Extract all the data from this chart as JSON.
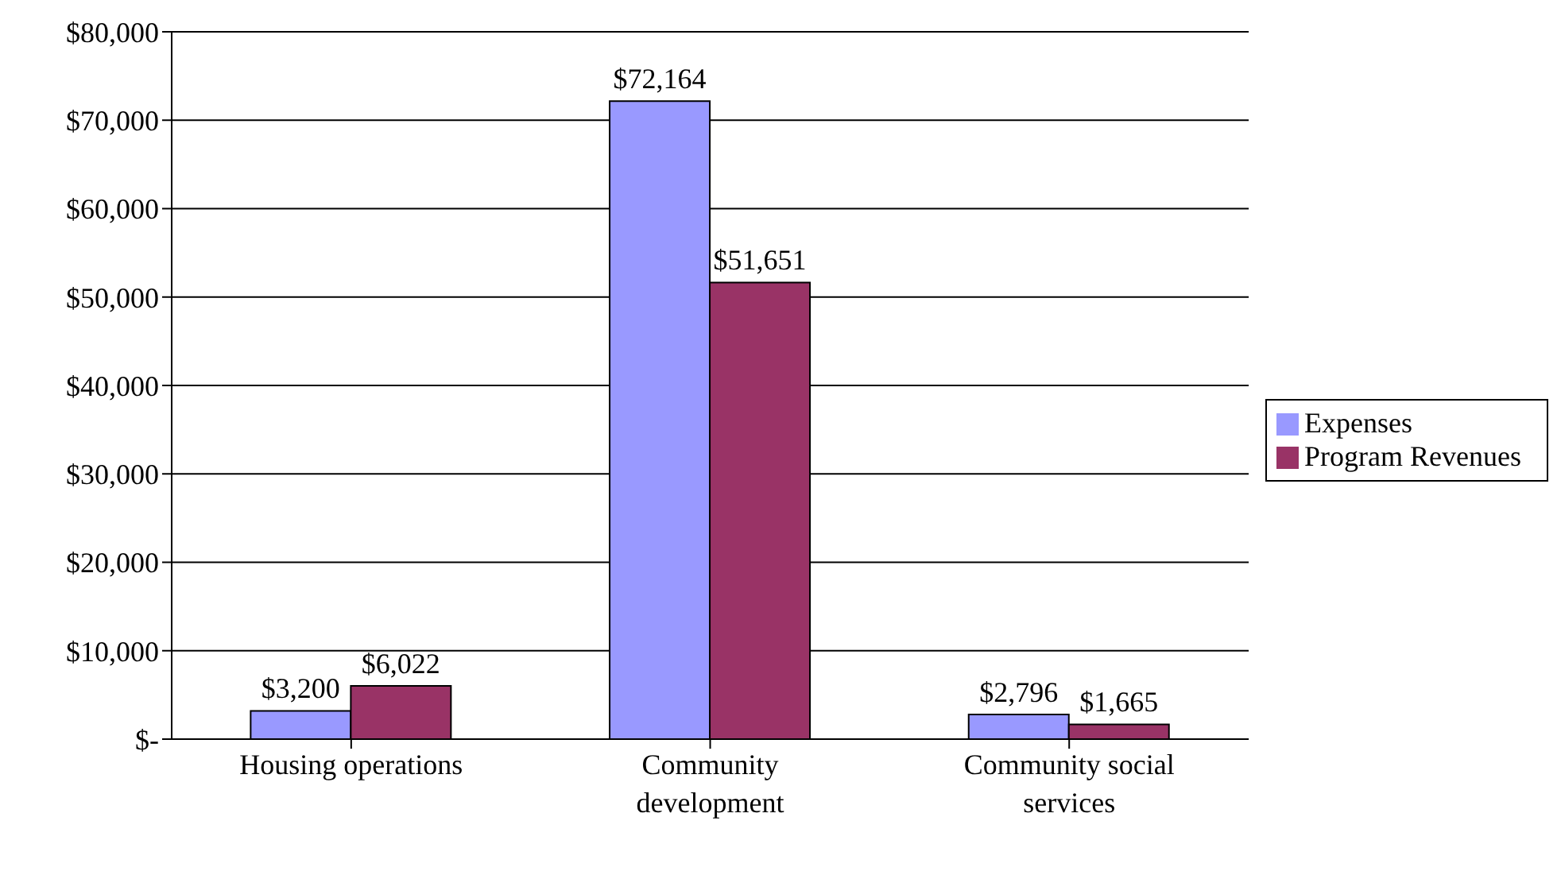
{
  "chart_data": {
    "type": "bar",
    "categories": [
      "Housing operations",
      "Community development",
      "Community social services"
    ],
    "series": [
      {
        "name": "Expenses",
        "color": "#9999ff",
        "values": [
          3200,
          72164,
          2796
        ],
        "value_labels": [
          "$3,200",
          "$72,164",
          "$2,796"
        ]
      },
      {
        "name": "Program Revenues",
        "color": "#993366",
        "values": [
          6022,
          51651,
          1665
        ],
        "value_labels": [
          "$6,022",
          "$51,651",
          "$1,665"
        ]
      }
    ],
    "ylim": [
      0,
      80000
    ],
    "yticks": [
      {
        "value": 0,
        "label": "$-"
      },
      {
        "value": 10000,
        "label": "$10,000"
      },
      {
        "value": 20000,
        "label": "$20,000"
      },
      {
        "value": 30000,
        "label": "$30,000"
      },
      {
        "value": 40000,
        "label": "$40,000"
      },
      {
        "value": 50000,
        "label": "$50,000"
      },
      {
        "value": 60000,
        "label": "$60,000"
      },
      {
        "value": 70000,
        "label": "$70,000"
      },
      {
        "value": 80000,
        "label": "$80,000"
      }
    ],
    "grid": "y",
    "legend": "right"
  }
}
